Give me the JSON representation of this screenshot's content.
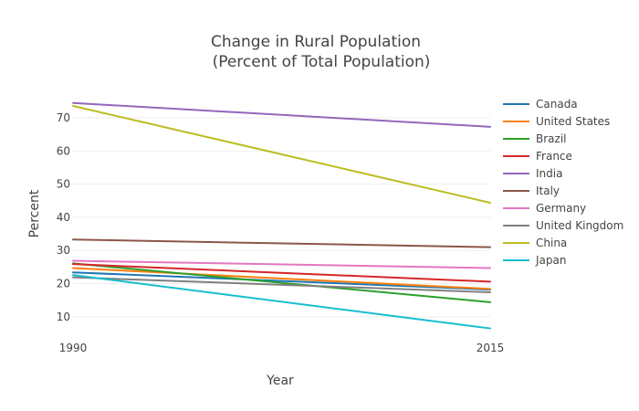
{
  "chart_data": {
    "type": "line",
    "title": "Change in Rural Population",
    "subtitle": "(Percent of Total Population)",
    "xlabel": "Year",
    "ylabel": "Percent",
    "x": [
      1990,
      2015
    ],
    "x_ticks": [
      "1990",
      "2015"
    ],
    "y_ticks": [
      10,
      20,
      30,
      40,
      50,
      60,
      70
    ],
    "ylim": [
      5,
      78
    ],
    "grid": true,
    "legend_position": "right",
    "series": [
      {
        "name": "Canada",
        "values": [
          23.4,
          18.2
        ],
        "color": "#1f77b4"
      },
      {
        "name": "United States",
        "values": [
          24.7,
          18.4
        ],
        "color": "#ff7f0e"
      },
      {
        "name": "Brazil",
        "values": [
          26.1,
          14.4
        ],
        "color": "#2ca02c"
      },
      {
        "name": "France",
        "values": [
          25.9,
          20.6
        ],
        "color": "#d62728"
      },
      {
        "name": "India",
        "values": [
          74.5,
          67.3
        ],
        "color": "#9467bd"
      },
      {
        "name": "Italy",
        "values": [
          33.3,
          31.0
        ],
        "color": "#8c564b"
      },
      {
        "name": "Germany",
        "values": [
          26.9,
          24.7
        ],
        "color": "#e377c2"
      },
      {
        "name": "United Kingdom",
        "values": [
          21.9,
          17.4
        ],
        "color": "#7f7f7f"
      },
      {
        "name": "China",
        "values": [
          73.6,
          44.4
        ],
        "color": "#bcbd22"
      },
      {
        "name": "Japan",
        "values": [
          22.6,
          6.5
        ],
        "color": "#17becf"
      }
    ]
  }
}
